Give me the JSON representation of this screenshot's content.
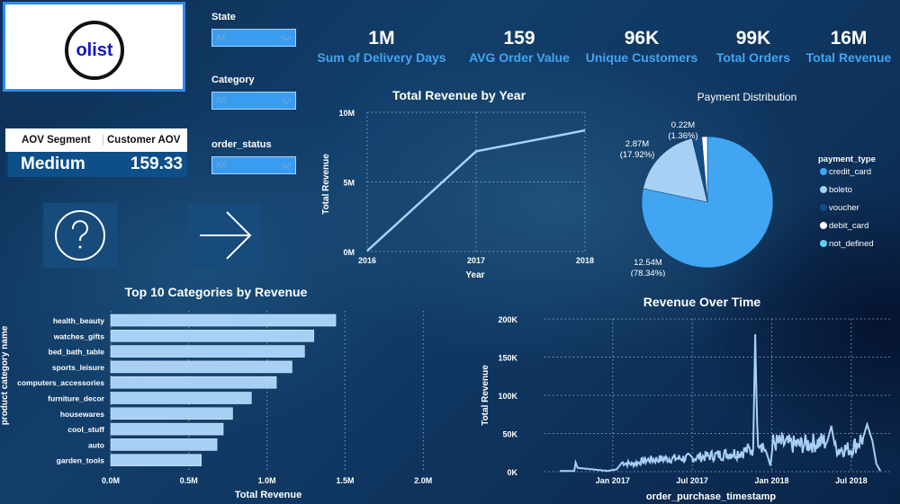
{
  "logo": {
    "text": "olist"
  },
  "aov_table": {
    "headers": [
      "AOV Segment",
      "Customer AOV"
    ],
    "row": [
      "Medium",
      "159.33"
    ]
  },
  "nav": {
    "help_icon": "question-circle-icon",
    "next_icon": "arrow-right-icon"
  },
  "slicers": [
    {
      "label": "State",
      "value": "All"
    },
    {
      "label": "Category",
      "value": "All"
    },
    {
      "label": "order_status",
      "value": "All"
    }
  ],
  "kpis": [
    {
      "value": "1M",
      "label": "Sum of Delivery Days"
    },
    {
      "value": "159",
      "label": "AVG Order Value"
    },
    {
      "value": "96K",
      "label": "Unique Customers"
    },
    {
      "value": "99K",
      "label": "Total Orders"
    },
    {
      "value": "16M",
      "label": "Total Revenue"
    }
  ],
  "colors": {
    "accent": "#41a5f2",
    "bar": "#a8d0f5",
    "line": "#a8d0f5"
  },
  "chart_data": [
    {
      "id": "revenue_by_year",
      "type": "line",
      "title": "Total Revenue by Year",
      "xlabel": "Year",
      "ylabel": "Total Revenue",
      "x": [
        "2016",
        "2017",
        "2018"
      ],
      "values": [
        0.05,
        7.2,
        8.7
      ],
      "unit": "M",
      "ylim": [
        0,
        10
      ],
      "yticks": [
        "0M",
        "5M",
        "10M"
      ],
      "ytick_values": [
        0,
        5,
        10
      ],
      "grid": true
    },
    {
      "id": "payment_distribution",
      "type": "pie",
      "title": "Payment Distribution",
      "legend_title": "payment_type",
      "legend_position": "right",
      "slices": [
        {
          "name": "credit_card",
          "value": 12.54,
          "label": "12.54M",
          "pct": "(78.34%)",
          "color": "#41a5f2"
        },
        {
          "name": "boleto",
          "value": 2.87,
          "label": "2.87M",
          "pct": "(17.92%)",
          "color": "#a8d0f5"
        },
        {
          "name": "voucher",
          "value": 0.38,
          "label": "",
          "pct": "",
          "color": "#124d86"
        },
        {
          "name": "debit_card",
          "value": 0.22,
          "label": "0.22M",
          "pct": "(1.36%)",
          "color": "#ffffff"
        },
        {
          "name": "not_defined",
          "value": 0.0,
          "label": "",
          "pct": "",
          "color": "#5fd0ea"
        }
      ]
    },
    {
      "id": "top_categories",
      "type": "bar",
      "orientation": "horizontal",
      "title": "Top 10 Categories by Revenue",
      "xlabel": "Total Revenue",
      "ylabel": "product category name",
      "categories": [
        "health_beauty",
        "watches_gifts",
        "bed_bath_table",
        "sports_leisure",
        "computers_accessories",
        "furniture_decor",
        "housewares",
        "cool_stuff",
        "auto",
        "garden_tools"
      ],
      "values": [
        1.44,
        1.3,
        1.24,
        1.16,
        1.06,
        0.9,
        0.78,
        0.72,
        0.68,
        0.58
      ],
      "unit": "M",
      "xlim": [
        0,
        2.2
      ],
      "xticks": [
        "0.0M",
        "0.5M",
        "1.0M",
        "1.5M",
        "2.0M"
      ],
      "xtick_values": [
        0,
        0.5,
        1.0,
        1.5,
        2.0
      ],
      "grid": true
    },
    {
      "id": "revenue_over_time",
      "type": "line",
      "title": "Revenue Over Time",
      "xlabel": "order_purchase_timestamp",
      "ylabel": "Total Revenue",
      "unit": "K",
      "ylim": [
        0,
        200
      ],
      "yticks": [
        "0K",
        "50K",
        "100K",
        "150K",
        "200K"
      ],
      "ytick_values": [
        0,
        50,
        100,
        150,
        200
      ],
      "xticks": [
        "Jan 2017",
        "Jul 2017",
        "Jan 2018",
        "Jul 2018"
      ],
      "xtick_months": [
        4,
        10,
        16,
        22
      ],
      "x_range_months": [
        0,
        24.5
      ],
      "series_description": "daily revenue Sep 2016 - Sep 2018",
      "keypoints": [
        {
          "m": 0.0,
          "v": 1
        },
        {
          "m": 1.1,
          "v": 1
        },
        {
          "m": 1.2,
          "v": 12
        },
        {
          "m": 1.35,
          "v": 5
        },
        {
          "m": 3.6,
          "v": 1
        },
        {
          "m": 4.3,
          "v": 3
        },
        {
          "m": 4.7,
          "v": 12
        },
        {
          "m": 5.5,
          "v": 10
        },
        {
          "m": 6.5,
          "v": 15
        },
        {
          "m": 8.0,
          "v": 17
        },
        {
          "m": 10.0,
          "v": 18
        },
        {
          "m": 12.0,
          "v": 22
        },
        {
          "m": 13.5,
          "v": 25
        },
        {
          "m": 14.6,
          "v": 30
        },
        {
          "m": 14.75,
          "v": 180
        },
        {
          "m": 14.9,
          "v": 50
        },
        {
          "m": 15.6,
          "v": 25
        },
        {
          "m": 15.9,
          "v": 8
        },
        {
          "m": 16.1,
          "v": 38
        },
        {
          "m": 18.0,
          "v": 35
        },
        {
          "m": 20.2,
          "v": 40
        },
        {
          "m": 20.5,
          "v": 60
        },
        {
          "m": 20.8,
          "v": 30
        },
        {
          "m": 22.0,
          "v": 30
        },
        {
          "m": 22.9,
          "v": 45
        },
        {
          "m": 23.2,
          "v": 62
        },
        {
          "m": 23.6,
          "v": 40
        },
        {
          "m": 23.9,
          "v": 10
        },
        {
          "m": 24.2,
          "v": 1
        }
      ],
      "grid": true
    }
  ]
}
